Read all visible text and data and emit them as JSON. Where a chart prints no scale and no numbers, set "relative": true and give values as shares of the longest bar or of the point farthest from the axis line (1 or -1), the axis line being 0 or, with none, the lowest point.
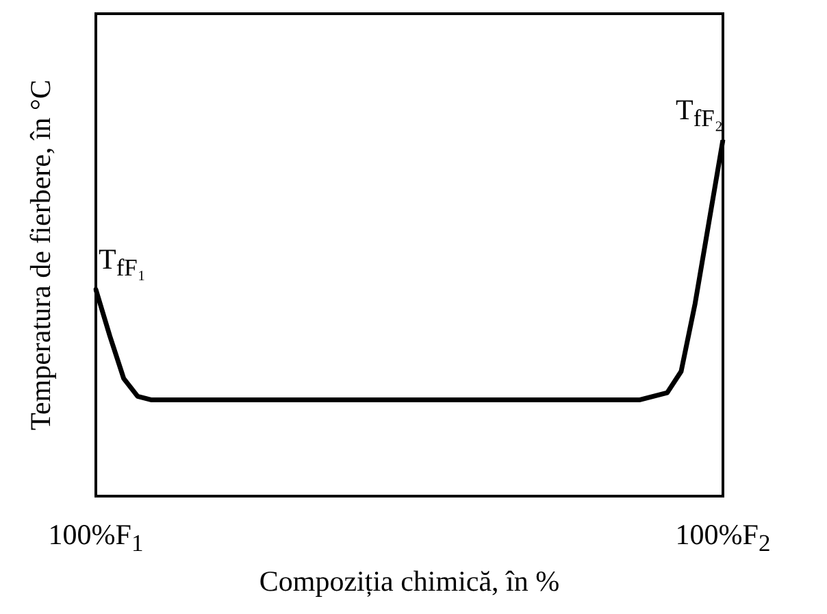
{
  "chart_data": {
    "type": "line",
    "relative": true,
    "xlabel": "Compoziția chimică, în %",
    "ylabel": "Temperatura de fierbere, în °C",
    "categories": [
      "100%F$_{1}$",
      null,
      null,
      null,
      null,
      null,
      null,
      null,
      null,
      null,
      null,
      null,
      null,
      null,
      null,
      null,
      null,
      null,
      null,
      null,
      null,
      null,
      null,
      null,
      null,
      null,
      null,
      null,
      null,
      null,
      null,
      null,
      null,
      null,
      null,
      null,
      null,
      null,
      null,
      null,
      null,
      null,
      null,
      null,
      null,
      "100%F$_{2}$"
    ],
    "series": [
      {
        "color": "#000000",
        "values": [
          0.58,
          0.45,
          0.33,
          0.28,
          0.27,
          0.27,
          0.27,
          0.27,
          0.27,
          0.27,
          0.27,
          0.27,
          0.27,
          0.27,
          0.27,
          0.27,
          0.27,
          0.27,
          0.27,
          0.27,
          0.27,
          0.27,
          0.27,
          0.27,
          0.27,
          0.27,
          0.27,
          0.27,
          0.27,
          0.27,
          0.27,
          0.27,
          0.27,
          0.27,
          0.27,
          0.27,
          0.27,
          0.27,
          0.27,
          0.27,
          0.28,
          0.29,
          0.35,
          0.54,
          0.77,
          1
        ]
      }
    ],
    "annotations": [
      {
        "text": "T$_{fF₁}$",
        "x": "100%F$_{1}$",
        "y": 0.58
      },
      {
        "text": "T$_{fF₂}$",
        "x": "100%F$_{2}$",
        "y": 1
      }
    ]
  }
}
